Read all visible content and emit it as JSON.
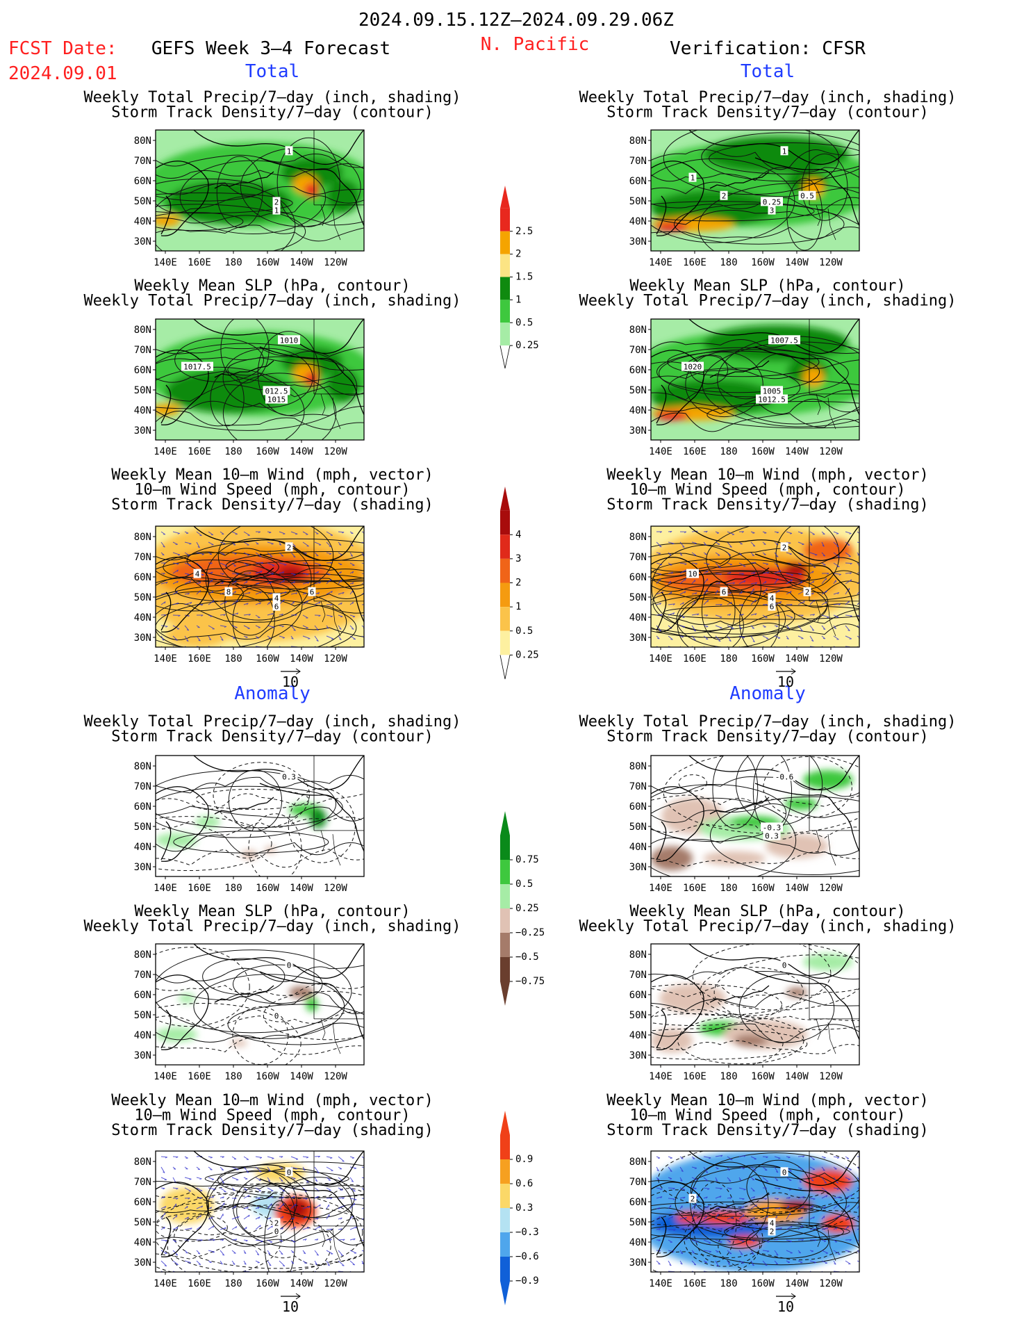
{
  "header": {
    "date_range": "2024.09.15.12Z–2024.09.29.06Z",
    "fcst_label": "FCST Date:",
    "fcst_date": "2024.09.01",
    "forecast_title": "GEFS Week 3–4 Forecast",
    "region": "N. Pacific",
    "verification": "Verification: CFSR"
  },
  "sections": {
    "total": "Total",
    "anomaly": "Anomaly"
  },
  "panel_titles": {
    "precip_track": [
      "Weekly Total Precip/7–day (inch, shading)",
      "Storm Track Density/7–day (contour)"
    ],
    "slp_precip": [
      "Weekly Mean SLP (hPa, contour)",
      "Weekly Total Precip/7–day (inch, shading)"
    ],
    "wind_track": [
      "Weekly Mean 10–m Wind (mph, vector)",
      "10–m Wind Speed (mph, contour)",
      "Storm Track Density/7–day (shading)"
    ]
  },
  "axes": {
    "lat_labels": [
      "80N",
      "70N",
      "60N",
      "50N",
      "40N",
      "30N"
    ],
    "lon_labels": [
      "140E",
      "160E",
      "180",
      "160W",
      "140W",
      "120W"
    ]
  },
  "vector_reference": "10",
  "contour_labels": {
    "t1_forecast": [
      "1",
      "2",
      "1"
    ],
    "t1_verif": [
      "1",
      "0.25",
      "3",
      "1",
      "2",
      "0.5"
    ],
    "t2_forecast": [
      "1010",
      "012.5",
      "1015",
      "1017.5"
    ],
    "t2_verif": [
      "1007.5",
      "1005",
      "1012.5",
      "1020"
    ],
    "t3_forecast": [
      "2",
      "4",
      "6",
      "4",
      "8",
      "6"
    ],
    "t3_verif": [
      "2",
      "4",
      "6",
      "10",
      "6",
      "2"
    ],
    "a1_forecast": [
      "0.3"
    ],
    "a1_verif": [
      "-0.6",
      "-0.3",
      "0.3"
    ],
    "a2_forecast": [
      "0",
      "0"
    ],
    "a2_verif": [
      "0"
    ],
    "a3_forecast": [
      "0",
      "2",
      "0"
    ],
    "a3_verif": [
      "0",
      "4",
      "2",
      "2"
    ]
  },
  "legends": {
    "precip_total": {
      "labels": [
        "2.5",
        "2",
        "1.5",
        "1",
        "0.5",
        "0.25"
      ],
      "colors": [
        "#e8281e",
        "#f5a400",
        "#fce484",
        "#0f8a0f",
        "#3ec83e",
        "#a6eca6"
      ]
    },
    "track_total": {
      "labels": [
        "4",
        "3",
        "2",
        "1",
        "0.5",
        "0.25"
      ],
      "colors": [
        "#a80c0c",
        "#e02a1a",
        "#f06418",
        "#f59b10",
        "#fbc34a",
        "#fdf0a0"
      ]
    },
    "precip_anom": {
      "labels": [
        "0.75",
        "0.5",
        "0.25",
        "−0.25",
        "−0.5",
        "−0.75"
      ],
      "colors": [
        "#0a8a1a",
        "#3ec83e",
        "#a6eca6",
        "#e0c2b4",
        "#a57b6a",
        "#6a3e2e"
      ]
    },
    "track_anom": {
      "labels": [
        "0.9",
        "0.6",
        "0.3",
        "−0.3",
        "−0.6",
        "−0.9"
      ],
      "colors": [
        "#f04018",
        "#f6a020",
        "#fbd868",
        "#b4e2f2",
        "#4fa6ec",
        "#1060d8"
      ]
    }
  },
  "colors": {
    "title_red": "#ff1f1f",
    "section_blue": "#1f3cff",
    "wind_vector": "#3030cc"
  }
}
